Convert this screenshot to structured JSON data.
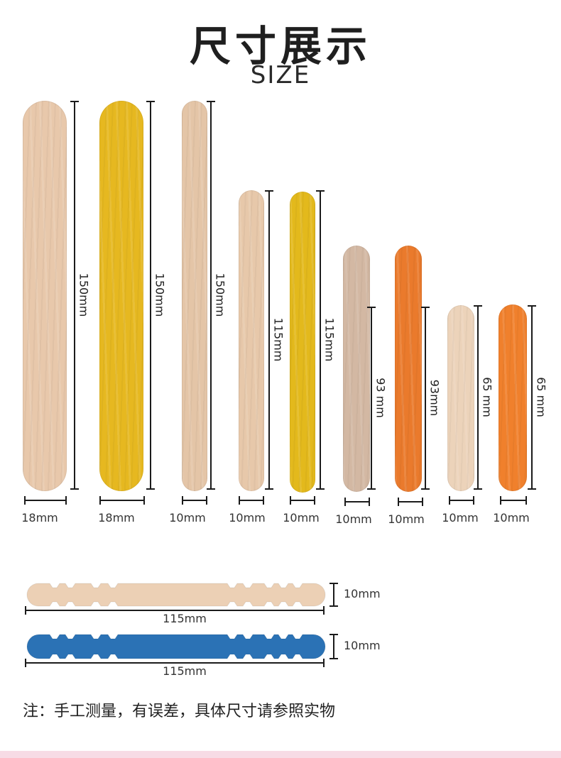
{
  "title": "尺寸展示",
  "subtitle": "SIZE",
  "sticks": [
    {
      "length": "150mm",
      "width": "18mm",
      "color": "#e8c8ab"
    },
    {
      "length": "150mm",
      "width": "18mm",
      "color": "#e6b820"
    },
    {
      "length": "150mm",
      "width": "10mm",
      "color": "#e4c5a7"
    },
    {
      "length": "115mm",
      "width": "10mm",
      "color": "#e7c8aa"
    },
    {
      "length": "115mm",
      "width": "10mm",
      "color": "#e3b91c"
    },
    {
      "length": "93 mm",
      "width": "10mm",
      "color": "#d3b8a3"
    },
    {
      "length": "93mm",
      "width": "10mm",
      "color": "#ea7a2c"
    },
    {
      "length": "65 mm",
      "width": "10mm",
      "color": "#ecd3ba"
    },
    {
      "length": "65 mm",
      "width": "10mm",
      "color": "#f0802c"
    }
  ],
  "notched_sticks": [
    {
      "length": "115mm",
      "width": "10mm",
      "color": "#ecd0b5"
    },
    {
      "length": "115mm",
      "width": "10mm",
      "color": "#2b72b5"
    }
  ],
  "note": "注：手工测量，有误差，具体尺寸请参照实物"
}
